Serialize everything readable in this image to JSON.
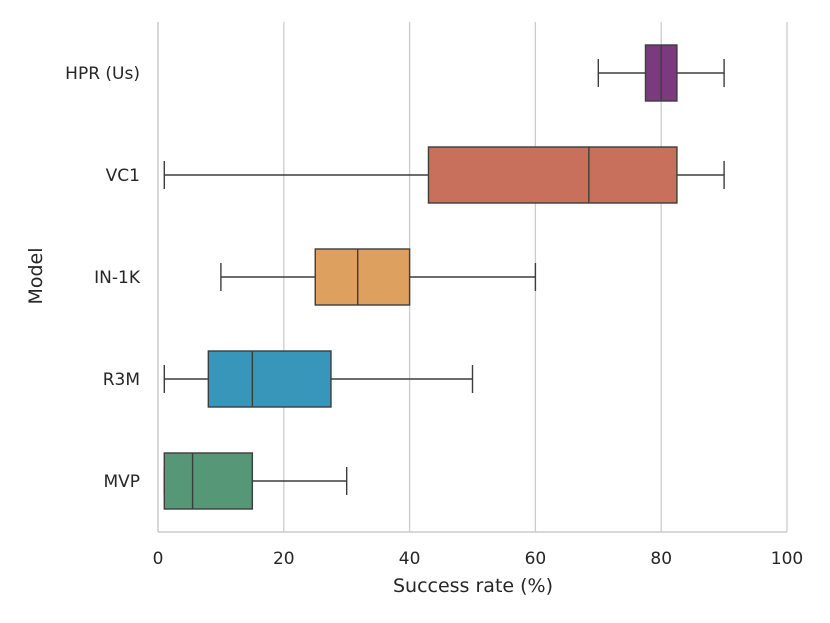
{
  "chart_data": {
    "type": "boxplot",
    "orientation": "horizontal",
    "title": "",
    "xlabel": "Success rate (%)",
    "ylabel": "Model",
    "xlim": [
      0,
      100
    ],
    "xticks": [
      0,
      20,
      40,
      60,
      80,
      100
    ],
    "xtick_labels": [
      "0",
      "20",
      "40",
      "60",
      "80",
      "100"
    ],
    "grid": "vertical",
    "categories": [
      "HPR (Us)",
      "VC1",
      "IN-1K",
      "R3M",
      "MVP"
    ],
    "boxes": [
      {
        "label": "HPR (Us)",
        "whisker_low": 70,
        "q1": 77.5,
        "median": 80,
        "q3": 82.5,
        "whisker_high": 90,
        "color": "#7b3a7f"
      },
      {
        "label": "VC1",
        "whisker_low": 1,
        "q1": 43,
        "median": 68.5,
        "q3": 82.5,
        "whisker_high": 90,
        "color": "#c8705c"
      },
      {
        "label": "IN-1K",
        "whisker_low": 10,
        "q1": 25,
        "median": 31.75,
        "q3": 40,
        "whisker_high": 60,
        "color": "#dea05e"
      },
      {
        "label": "R3M",
        "whisker_low": 1,
        "q1": 8,
        "median": 15,
        "q3": 27.5,
        "whisker_high": 50,
        "color": "#3796b9"
      },
      {
        "label": "MVP",
        "whisker_low": 1,
        "q1": 1,
        "median": 5.5,
        "q3": 15,
        "whisker_high": 30,
        "color": "#569777"
      }
    ]
  }
}
